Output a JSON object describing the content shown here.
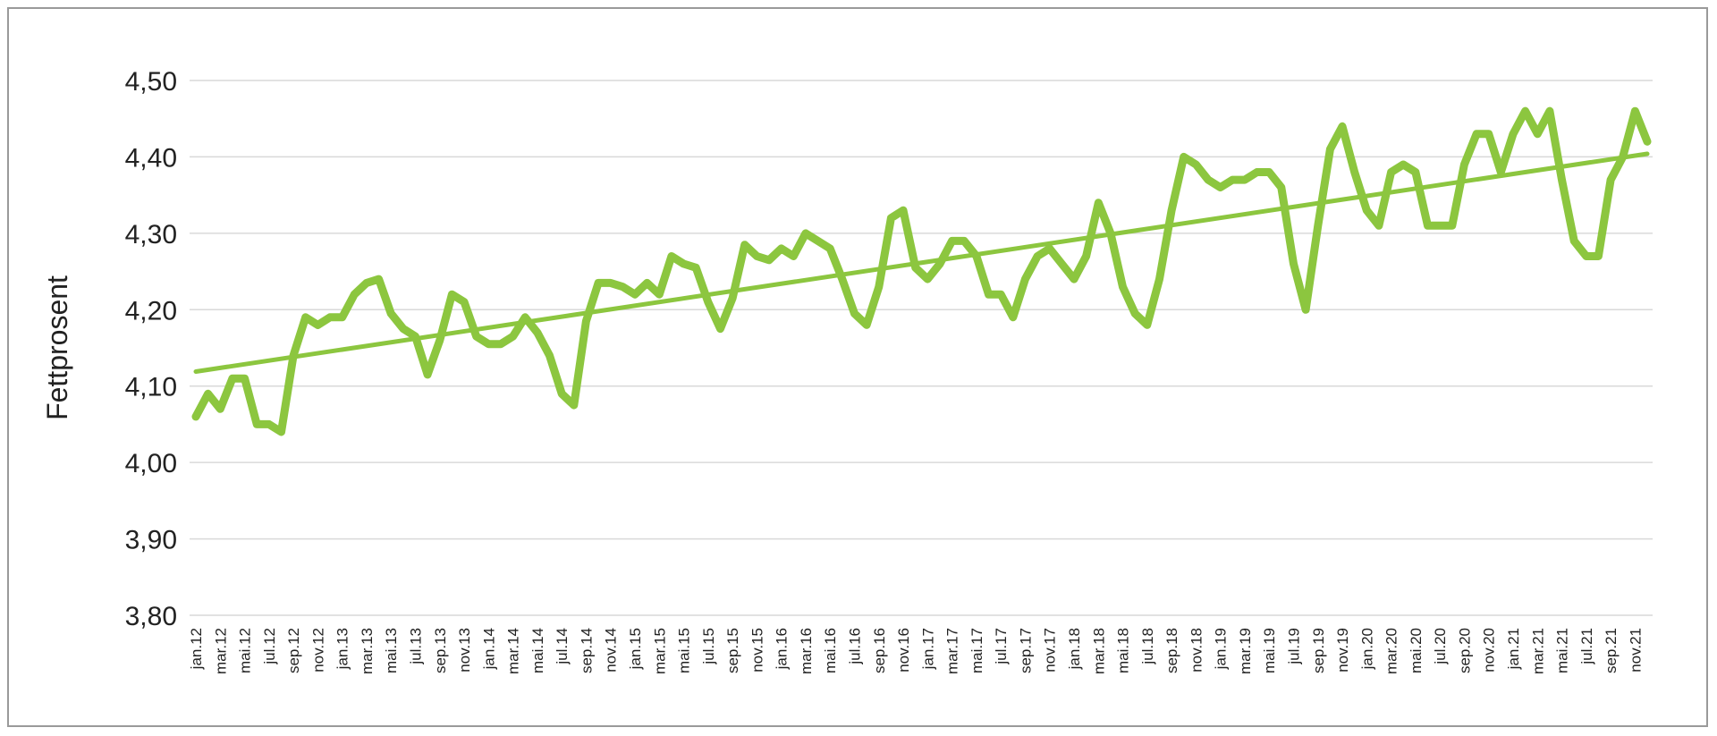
{
  "chart_data": {
    "type": "line",
    "ylabel": "Fettprosent",
    "xlabel": "",
    "title": "",
    "ylim": [
      3.8,
      4.5
    ],
    "y_ticks": [
      "3,80",
      "3,90",
      "4,00",
      "4,10",
      "4,20",
      "4,30",
      "4,40",
      "4,50"
    ],
    "grid": true,
    "legend": "none",
    "x_tick_labels": [
      "jan.12",
      "mar.12",
      "mai.12",
      "jul.12",
      "sep.12",
      "nov.12",
      "jan.13",
      "mar.13",
      "mai.13",
      "jul.13",
      "sep.13",
      "nov.13",
      "jan.14",
      "mar.14",
      "mai.14",
      "jul.14",
      "sep.14",
      "nov.14",
      "jan.15",
      "mar.15",
      "mai.15",
      "jul.15",
      "sep.15",
      "nov.15",
      "jan.16",
      "mar.16",
      "mai.16",
      "jul.16",
      "sep.16",
      "nov.16",
      "jan.17",
      "mar.17",
      "mai.17",
      "jul.17",
      "sep.17",
      "nov.17",
      "jan.18",
      "mar.18",
      "mai.18",
      "jul.18",
      "sep.18",
      "nov.18",
      "jan.19",
      "mar.19",
      "mai.19",
      "jul.19",
      "sep.19",
      "nov.19",
      "jan.20",
      "mar.20",
      "mai.20",
      "jul.20",
      "sep.20",
      "nov.20",
      "jan.21",
      "mar.21",
      "mai.21",
      "jul.21",
      "sep.21",
      "nov.21"
    ],
    "series": [
      {
        "color": "#8cc63f",
        "values": [
          4.06,
          4.09,
          4.07,
          4.11,
          4.11,
          4.05,
          4.05,
          4.04,
          4.14,
          4.19,
          4.18,
          4.19,
          4.19,
          4.22,
          4.235,
          4.24,
          4.195,
          4.175,
          4.165,
          4.115,
          4.16,
          4.22,
          4.21,
          4.165,
          4.155,
          4.155,
          4.165,
          4.19,
          4.17,
          4.14,
          4.09,
          4.075,
          4.185,
          4.235,
          4.235,
          4.23,
          4.22,
          4.235,
          4.22,
          4.27,
          4.26,
          4.255,
          4.21,
          4.175,
          4.215,
          4.285,
          4.27,
          4.265,
          4.28,
          4.27,
          4.3,
          4.29,
          4.28,
          4.24,
          4.195,
          4.18,
          4.23,
          4.32,
          4.33,
          4.255,
          4.24,
          4.26,
          4.29,
          4.29,
          4.27,
          4.22,
          4.22,
          4.19,
          4.24,
          4.27,
          4.28,
          4.26,
          4.24,
          4.27,
          4.34,
          4.3,
          4.23,
          4.195,
          4.18,
          4.24,
          4.33,
          4.4,
          4.39,
          4.37,
          4.36,
          4.37,
          4.37,
          4.38,
          4.38,
          4.36,
          4.26,
          4.2,
          4.31,
          4.41,
          4.44,
          4.38,
          4.33,
          4.31,
          4.38,
          4.39,
          4.38,
          4.31,
          4.31,
          4.31,
          4.39,
          4.43,
          4.43,
          4.38,
          4.43,
          4.46,
          4.43,
          4.46,
          4.37,
          4.29,
          4.27,
          4.27,
          4.37,
          4.4,
          4.46,
          4.42
        ]
      },
      {
        "color": "#8cc63f",
        "trendline": true,
        "values": [
          4.119,
          4.404
        ]
      }
    ]
  }
}
